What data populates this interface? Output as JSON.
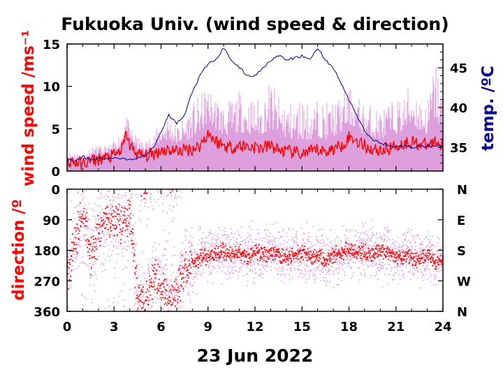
{
  "title": "Fukuoka Univ. (wind speed & direction)",
  "date_label": "23 Jun 2022",
  "colors": {
    "speed_line": "#ff0000",
    "gust": "#dda0dd",
    "temperature": "#00008b",
    "direction_points": "#ff0000",
    "direction_scatter": "#dda0dd",
    "axis": "#000000"
  },
  "chart_data": [
    {
      "type": "line",
      "panel": "wind speed",
      "ylabel": "wind speed /ms⁻¹",
      "y2label": "temp. /ºC",
      "xlim": [
        0,
        24
      ],
      "ylim": [
        0,
        15
      ],
      "y2lim": [
        32,
        48
      ],
      "x_ticks": [
        "0",
        "3",
        "6",
        "9",
        "12",
        "15",
        "18",
        "21",
        "24"
      ],
      "y_ticks": [
        "0",
        "5",
        "10",
        "15"
      ],
      "y2_ticks": [
        "35",
        "40",
        "45"
      ],
      "series": [
        {
          "role": "mean_speed",
          "x": [
            0,
            0.5,
            1,
            1.5,
            2,
            2.5,
            3,
            3.5,
            3.8,
            4,
            4.5,
            5,
            5.5,
            6,
            6.5,
            7,
            7.5,
            8,
            8.5,
            9,
            9.5,
            10,
            10.5,
            11,
            11.5,
            12,
            12.5,
            13,
            13.5,
            14,
            14.5,
            15,
            15.5,
            16,
            16.5,
            17,
            17.5,
            18,
            18.5,
            19,
            19.5,
            20,
            20.5,
            21,
            21.5,
            22,
            22.5,
            23,
            23.5,
            24
          ],
          "values": [
            1.2,
            1.0,
            0.9,
            1.2,
            1.4,
            1.6,
            1.8,
            2.5,
            4.5,
            3.0,
            2.0,
            1.8,
            2.0,
            2.5,
            2.5,
            2.4,
            2.5,
            2.6,
            3.0,
            4.5,
            3.5,
            3.0,
            2.8,
            3.0,
            2.9,
            2.8,
            2.7,
            3.0,
            2.5,
            2.3,
            2.2,
            2.0,
            2.2,
            2.5,
            2.3,
            2.6,
            3.0,
            4.0,
            3.6,
            3.0,
            2.5,
            2.5,
            2.6,
            3.0,
            3.2,
            3.5,
            3.2,
            3.0,
            3.5,
            3.2
          ]
        },
        {
          "role": "gust_max",
          "x": [
            0,
            0.5,
            1,
            1.5,
            2,
            2.5,
            3,
            3.5,
            3.8,
            4,
            4.5,
            5,
            5.5,
            6,
            6.5,
            7,
            7.5,
            8,
            8.5,
            9,
            9.5,
            10,
            10.5,
            11,
            11.5,
            12,
            12.5,
            13,
            13.5,
            14,
            14.5,
            15,
            15.5,
            16,
            16.5,
            17,
            17.5,
            18,
            18.5,
            19,
            19.5,
            20,
            20.5,
            21,
            21.5,
            22,
            22.5,
            23,
            23.5,
            24
          ],
          "values": [
            2.2,
            2.5,
            2.0,
            2.8,
            3.0,
            3.0,
            3.5,
            5.0,
            6.5,
            5.5,
            4.0,
            3.5,
            4.5,
            6.0,
            7.0,
            5.5,
            6.5,
            8.0,
            9.0,
            10.0,
            9.0,
            8.0,
            8.5,
            9.5,
            9.0,
            8.5,
            9.0,
            11.0,
            9.0,
            8.5,
            8.0,
            9.0,
            8.0,
            8.5,
            8.0,
            8.5,
            9.0,
            10.0,
            9.0,
            8.0,
            8.0,
            7.5,
            8.0,
            8.5,
            9.0,
            11.0,
            9.0,
            8.0,
            14.0,
            9.0
          ]
        },
        {
          "role": "temperature",
          "axis": "y2",
          "x": [
            0,
            0.5,
            1,
            1.5,
            2,
            2.5,
            3,
            3.5,
            4,
            4.5,
            5,
            5.5,
            6,
            6.5,
            7,
            7.5,
            8,
            8.5,
            9,
            9.5,
            10,
            10.5,
            11,
            11.5,
            12,
            12.5,
            13,
            13.5,
            14,
            14.5,
            15,
            15.5,
            16,
            16.5,
            17,
            17.5,
            18,
            18.5,
            19,
            19.5,
            20,
            20.5,
            21,
            21.5,
            22,
            22.5,
            23,
            23.5,
            24
          ],
          "values": [
            33.5,
            33.3,
            33.8,
            33.4,
            33.6,
            33.5,
            33.7,
            33.6,
            33.5,
            33.6,
            34.0,
            35.0,
            37.0,
            39.0,
            38.0,
            39.0,
            42.0,
            44.0,
            45.5,
            46.0,
            47.5,
            46.0,
            45.0,
            44.0,
            44.0,
            45.0,
            46.0,
            46.5,
            46.0,
            46.2,
            46.5,
            46.0,
            47.5,
            46.0,
            45.0,
            43.0,
            41.0,
            39.0,
            37.0,
            36.0,
            35.5,
            35.3,
            35.0,
            35.2,
            35.0,
            35.1,
            35.0,
            35.3,
            35.0
          ]
        }
      ]
    },
    {
      "type": "scatter",
      "panel": "direction",
      "ylabel": "direction /º",
      "xlabel": "23 Jun 2022",
      "xlim": [
        0,
        24
      ],
      "ylim": [
        360,
        0
      ],
      "x_ticks": [
        "0",
        "3",
        "6",
        "9",
        "12",
        "15",
        "18",
        "21",
        "24"
      ],
      "y_ticks": [
        "0",
        "90",
        "180",
        "270",
        "360"
      ],
      "compass_ticks": [
        "N",
        "E",
        "S",
        "W",
        "N"
      ],
      "series": [
        {
          "role": "mean_direction",
          "x": [
            0,
            0.5,
            1,
            1.5,
            2,
            2.5,
            3,
            3.5,
            4,
            4.5,
            5,
            5.5,
            6,
            6.5,
            7,
            7.5,
            8,
            8.5,
            9,
            9.5,
            10,
            10.5,
            11,
            11.5,
            12,
            12.5,
            13,
            13.5,
            14,
            14.5,
            15,
            15.5,
            16,
            16.5,
            17,
            17.5,
            18,
            18.5,
            19,
            19.5,
            20,
            20.5,
            21,
            21.5,
            22,
            22.5,
            23,
            23.5,
            24
          ],
          "values": [
            250,
            150,
            60,
            200,
            120,
            90,
            90,
            95,
            85,
            320,
            330,
            250,
            280,
            320,
            300,
            230,
            220,
            200,
            190,
            185,
            180,
            190,
            185,
            200,
            180,
            190,
            185,
            195,
            200,
            190,
            185,
            200,
            190,
            210,
            190,
            185,
            180,
            180,
            185,
            190,
            180,
            185,
            200,
            190,
            200,
            210,
            190,
            220,
            200
          ]
        }
      ]
    }
  ]
}
